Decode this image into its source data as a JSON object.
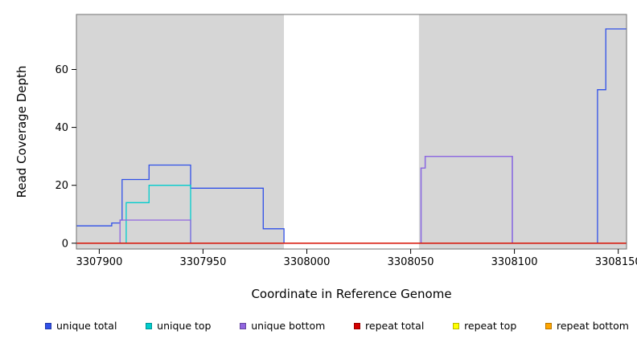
{
  "chart_data": {
    "type": "line",
    "title": "",
    "xlabel": "Coordinate in Reference Genome",
    "ylabel": "Read Coverage Depth",
    "xlim": [
      3307889,
      3308154
    ],
    "ylim": [
      -2,
      79
    ],
    "xticks": [
      3307900,
      3307950,
      3308000,
      3308050,
      3308100,
      3308150
    ],
    "yticks": [
      0,
      20,
      40,
      60
    ],
    "grid": false,
    "legend_position": "bottom",
    "plot_background": "#D6D6D6",
    "border_color": "#707070",
    "background_regions": [
      {
        "name": "shaded-region-left",
        "from": 3307889,
        "to": 3307989,
        "color": "#D6D6D6"
      },
      {
        "name": "gap-region",
        "from": 3307989,
        "to": 3308054,
        "color": "#FFFFFF"
      },
      {
        "name": "shaded-region-right",
        "from": 3308054,
        "to": 3308154,
        "color": "#D6D6D6"
      }
    ],
    "series": [
      {
        "name": "unique total",
        "color": "#3050E8",
        "z": 1,
        "step_points": [
          [
            3307889,
            6
          ],
          [
            3307906,
            6
          ],
          [
            3307906,
            7
          ],
          [
            3307910,
            7
          ],
          [
            3307910,
            8
          ],
          [
            3307911,
            8
          ],
          [
            3307911,
            22
          ],
          [
            3307924,
            22
          ],
          [
            3307924,
            27
          ],
          [
            3307944,
            27
          ],
          [
            3307944,
            19
          ],
          [
            3307979,
            19
          ],
          [
            3307979,
            5
          ],
          [
            3307989,
            5
          ],
          [
            3307989,
            0
          ],
          [
            3308055,
            0
          ],
          [
            3308055,
            26
          ],
          [
            3308057,
            26
          ],
          [
            3308057,
            30
          ],
          [
            3308099,
            30
          ],
          [
            3308099,
            0
          ],
          [
            3308140,
            0
          ],
          [
            3308140,
            53
          ],
          [
            3308144,
            53
          ],
          [
            3308144,
            74
          ],
          [
            3308154,
            74
          ]
        ]
      },
      {
        "name": "unique top",
        "color": "#00CDCD",
        "z": 2,
        "step_points": [
          [
            3307889,
            0
          ],
          [
            3307913,
            0
          ],
          [
            3307913,
            14
          ],
          [
            3307924,
            14
          ],
          [
            3307924,
            20
          ],
          [
            3307944,
            20
          ],
          [
            3307944,
            0
          ],
          [
            3308154,
            0
          ]
        ]
      },
      {
        "name": "unique bottom",
        "color": "#9166E0",
        "z": 3,
        "step_points": [
          [
            3307889,
            0
          ],
          [
            3307910,
            0
          ],
          [
            3307910,
            8
          ],
          [
            3307944,
            8
          ],
          [
            3307944,
            0
          ],
          [
            3308055,
            0
          ],
          [
            3308055,
            26
          ],
          [
            3308057,
            26
          ],
          [
            3308057,
            30
          ],
          [
            3308099,
            30
          ],
          [
            3308099,
            0
          ],
          [
            3308154,
            0
          ]
        ]
      },
      {
        "name": "repeat total",
        "color": "#D40000",
        "z": 6,
        "step_points": [
          [
            3307889,
            0
          ],
          [
            3308154,
            0
          ]
        ]
      },
      {
        "name": "repeat top",
        "color": "#FFFF00",
        "z": 4,
        "step_points": [
          [
            3307889,
            0
          ],
          [
            3308154,
            0
          ]
        ]
      },
      {
        "name": "repeat bottom",
        "color": "#FFA500",
        "z": 5,
        "step_points": [
          [
            3307889,
            0
          ],
          [
            3308154,
            0
          ]
        ]
      }
    ]
  }
}
